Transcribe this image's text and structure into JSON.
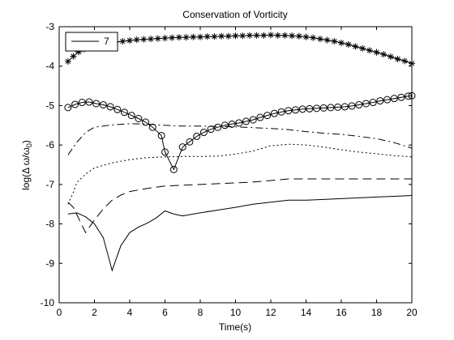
{
  "chart_data": {
    "type": "line",
    "title": "Conservation of Vorticity",
    "xlabel": "Time(s)",
    "ylabel": "log(Δ ω/ω",
    "ylabel_sub": "0",
    "ylabel_close": ")",
    "xlim": [
      0,
      20
    ],
    "ylim": [
      -10,
      -3
    ],
    "xticks": [
      0,
      2,
      4,
      6,
      8,
      10,
      12,
      14,
      16,
      18,
      20
    ],
    "yticks": [
      -10,
      -9,
      -8,
      -7,
      -6,
      -5,
      -4,
      -3
    ],
    "grid": false,
    "legend": {
      "position": "top-left",
      "entries": [
        "7"
      ]
    },
    "series": [
      {
        "name": "7",
        "style": "asterisk",
        "x": [
          0.5,
          0.8,
          1.1,
          1.4,
          1.7,
          2.0,
          2.4,
          2.8,
          3.2,
          3.6,
          4.0,
          4.4,
          4.8,
          5.2,
          5.6,
          6.0,
          6.4,
          6.8,
          7.2,
          7.6,
          8.0,
          8.4,
          8.8,
          9.2,
          9.6,
          10.0,
          10.4,
          10.8,
          11.2,
          11.6,
          12.0,
          12.4,
          12.8,
          13.2,
          13.6,
          14.0,
          14.4,
          14.8,
          15.2,
          15.6,
          16.0,
          16.4,
          16.8,
          17.2,
          17.6,
          18.0,
          18.4,
          18.8,
          19.2,
          19.6,
          20.0
        ],
        "y": [
          -3.88,
          -3.75,
          -3.64,
          -3.57,
          -3.52,
          -3.48,
          -3.45,
          -3.42,
          -3.39,
          -3.37,
          -3.35,
          -3.33,
          -3.32,
          -3.31,
          -3.3,
          -3.29,
          -3.28,
          -3.27,
          -3.27,
          -3.26,
          -3.26,
          -3.25,
          -3.25,
          -3.24,
          -3.24,
          -3.23,
          -3.23,
          -3.22,
          -3.22,
          -3.22,
          -3.21,
          -3.22,
          -3.22,
          -3.23,
          -3.24,
          -3.26,
          -3.28,
          -3.31,
          -3.34,
          -3.37,
          -3.41,
          -3.45,
          -3.5,
          -3.55,
          -3.6,
          -3.65,
          -3.7,
          -3.76,
          -3.82,
          -3.87,
          -3.93
        ]
      },
      {
        "style": "circle",
        "x": [
          0.5,
          0.9,
          1.3,
          1.7,
          2.1,
          2.5,
          2.9,
          3.3,
          3.7,
          4.1,
          4.5,
          4.9,
          5.3,
          5.8,
          6.0,
          6.5,
          7.0,
          7.4,
          7.8,
          8.2,
          8.6,
          9.0,
          9.4,
          9.8,
          10.2,
          10.6,
          11.0,
          11.4,
          11.8,
          12.2,
          12.6,
          13.0,
          13.4,
          13.8,
          14.2,
          14.6,
          15.0,
          15.4,
          15.8,
          16.2,
          16.6,
          17.0,
          17.4,
          17.8,
          18.2,
          18.6,
          19.0,
          19.4,
          19.8,
          20.0
        ],
        "y": [
          -5.05,
          -4.97,
          -4.92,
          -4.91,
          -4.95,
          -4.98,
          -5.03,
          -5.1,
          -5.17,
          -5.25,
          -5.33,
          -5.42,
          -5.55,
          -5.76,
          -6.18,
          -6.62,
          -6.05,
          -5.92,
          -5.78,
          -5.68,
          -5.6,
          -5.55,
          -5.5,
          -5.47,
          -5.44,
          -5.4,
          -5.36,
          -5.3,
          -5.25,
          -5.2,
          -5.16,
          -5.13,
          -5.11,
          -5.09,
          -5.08,
          -5.07,
          -5.06,
          -5.05,
          -5.04,
          -5.03,
          -5.01,
          -4.98,
          -4.95,
          -4.92,
          -4.88,
          -4.85,
          -4.82,
          -4.79,
          -4.76,
          -4.75
        ]
      },
      {
        "style": "dashdot",
        "x": [
          0.5,
          1.0,
          1.5,
          2.0,
          3.0,
          4.0,
          5.0,
          6.0,
          7.0,
          8.0,
          9.0,
          10.0,
          11.0,
          12.0,
          13.0,
          14.0,
          15.0,
          16.0,
          17.0,
          18.0,
          19.0,
          20.0
        ],
        "y": [
          -6.25,
          -5.93,
          -5.68,
          -5.55,
          -5.49,
          -5.46,
          -5.47,
          -5.5,
          -5.52,
          -5.52,
          -5.53,
          -5.54,
          -5.56,
          -5.58,
          -5.61,
          -5.66,
          -5.7,
          -5.73,
          -5.78,
          -5.84,
          -5.94,
          -6.08
        ]
      },
      {
        "style": "dotted",
        "x": [
          0.5,
          0.8,
          1.0,
          1.5,
          2.0,
          3.0,
          4.0,
          5.0,
          6.0,
          7.0,
          8.0,
          9.0,
          10.0,
          11.0,
          12.0,
          13.0,
          14.0,
          15.0,
          16.0,
          17.0,
          18.0,
          19.0,
          20.0
        ],
        "y": [
          -7.5,
          -7.2,
          -6.95,
          -6.74,
          -6.58,
          -6.45,
          -6.37,
          -6.32,
          -6.3,
          -6.29,
          -6.29,
          -6.28,
          -6.23,
          -6.15,
          -6.02,
          -5.98,
          -6.0,
          -6.05,
          -6.12,
          -6.18,
          -6.22,
          -6.27,
          -6.3
        ]
      },
      {
        "style": "dashed",
        "x": [
          0.5,
          0.8,
          1.2,
          1.5,
          2.0,
          2.5,
          3.0,
          3.5,
          4.0,
          5.0,
          6.0,
          7.0,
          8.0,
          9.0,
          10.0,
          11.0,
          12.0,
          13.0,
          14.0,
          15.0,
          16.0,
          17.0,
          18.0,
          19.0,
          20.0
        ],
        "y": [
          -7.45,
          -7.58,
          -7.95,
          -8.22,
          -7.9,
          -7.62,
          -7.4,
          -7.27,
          -7.18,
          -7.1,
          -7.04,
          -7.02,
          -7.0,
          -6.98,
          -6.96,
          -6.94,
          -6.9,
          -6.86,
          -6.86,
          -6.86,
          -6.86,
          -6.86,
          -6.86,
          -6.86,
          -6.86
        ]
      },
      {
        "style": "solid",
        "x": [
          0.5,
          1.0,
          1.5,
          2.0,
          2.5,
          3.0,
          3.5,
          4.0,
          4.5,
          5.0,
          5.5,
          6.0,
          6.5,
          7.0,
          8.0,
          9.0,
          10.0,
          11.0,
          12.0,
          13.0,
          14.0,
          15.0,
          16.0,
          17.0,
          18.0,
          19.0,
          20.0
        ],
        "y": [
          -7.75,
          -7.72,
          -7.82,
          -8.0,
          -8.35,
          -9.18,
          -8.55,
          -8.22,
          -8.08,
          -7.98,
          -7.85,
          -7.67,
          -7.75,
          -7.8,
          -7.72,
          -7.65,
          -7.58,
          -7.5,
          -7.45,
          -7.4,
          -7.4,
          -7.38,
          -7.36,
          -7.34,
          -7.32,
          -7.3,
          -7.28
        ]
      }
    ]
  }
}
